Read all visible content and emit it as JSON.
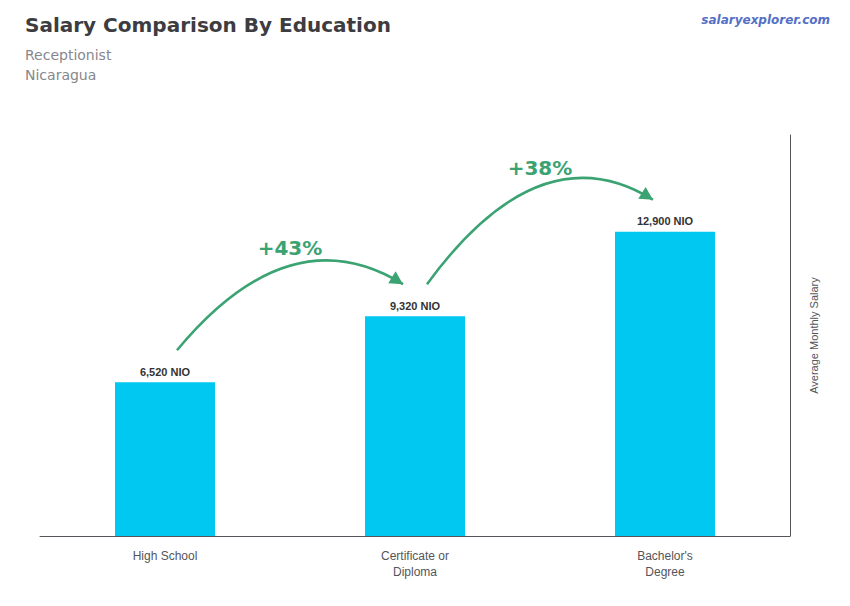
{
  "chart_data": {
    "type": "bar",
    "title": "Salary Comparison By Education",
    "subtitle": [
      "Receptionist",
      "Nicaragua"
    ],
    "ylabel": "Average Monthly Salary",
    "categories": [
      "High School",
      "Certificate or\nDiploma",
      "Bachelor's\nDegree"
    ],
    "values": [
      6520,
      9320,
      12900
    ],
    "value_labels": [
      "6,520 NIO",
      "9,320 NIO",
      "12,900 NIO"
    ],
    "data_labels": true,
    "color": "#00c8f0",
    "ylim": [
      0,
      17000
    ],
    "tick_labels": "x",
    "grid": false,
    "annotations": [
      "+43%",
      "+38%",
      "salaryexplorer.com"
    ]
  }
}
